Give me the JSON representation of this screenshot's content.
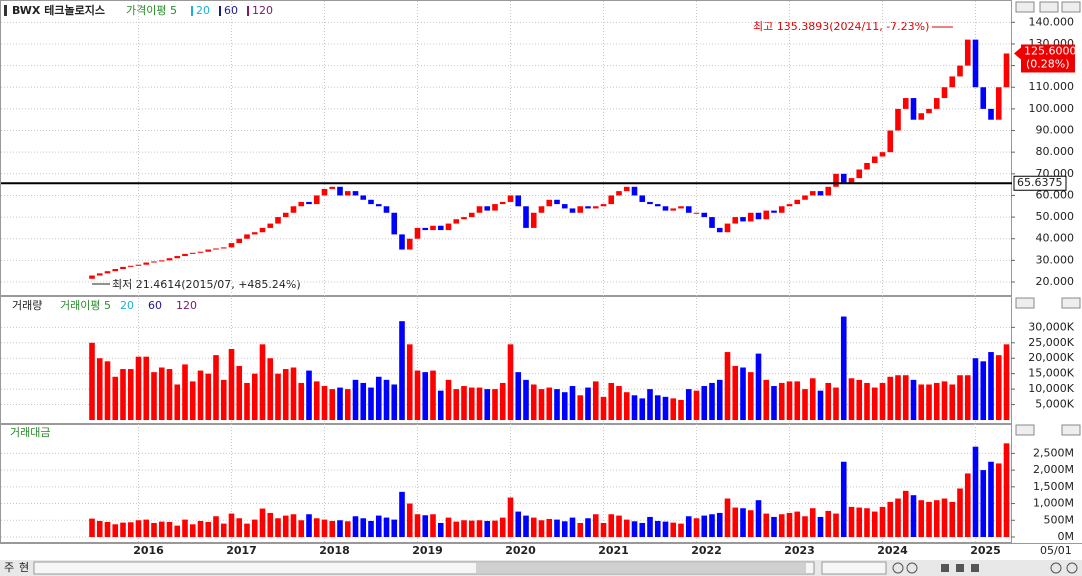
{
  "chart_data": {
    "type": "candlestick",
    "title": "BWX 테크놀로지스",
    "legend": {
      "ma_label": "가격이평 5",
      "items": [
        {
          "name": "20",
          "color": "#1ab0d8"
        },
        {
          "name": "60",
          "color": "#1a1a8c"
        },
        {
          "name": "120",
          "color": "#7a1a6a"
        }
      ]
    },
    "up_color": "#ff0000",
    "down_color": "#0000ff",
    "categories": [
      null,
      null,
      null,
      null,
      null,
      null,
      "2016",
      null,
      null,
      null,
      null,
      null,
      null,
      null,
      null,
      null,
      null,
      null,
      "2017",
      null,
      null,
      null,
      null,
      null,
      null,
      null,
      null,
      null,
      null,
      null,
      "2018",
      null,
      null,
      null,
      null,
      null,
      null,
      null,
      null,
      null,
      null,
      null,
      "2019",
      null,
      null,
      null,
      null,
      null,
      null,
      null,
      null,
      null,
      null,
      null,
      "2020",
      null,
      null,
      null,
      null,
      null,
      null,
      null,
      null,
      null,
      null,
      null,
      "2021",
      null,
      null,
      null,
      null,
      null,
      null,
      null,
      null,
      null,
      null,
      null,
      "2022",
      null,
      null,
      null,
      null,
      null,
      null,
      null,
      null,
      null,
      null,
      null,
      "2023",
      null,
      null,
      null,
      null,
      null,
      null,
      null,
      null,
      null,
      null,
      null,
      "2024",
      null,
      null,
      null,
      null,
      null,
      null,
      null,
      null,
      null,
      null,
      null,
      "2025",
      null,
      null,
      null,
      null
    ],
    "open": [
      21.5,
      23,
      24,
      25,
      26,
      27,
      27.5,
      28,
      29,
      29.5,
      30,
      31,
      32,
      33,
      33.5,
      34,
      35,
      35.5,
      36,
      38,
      40,
      42,
      43,
      45,
      47,
      50,
      52,
      55,
      57,
      56,
      60,
      63,
      64,
      60,
      62,
      60,
      58,
      56,
      55,
      52,
      42,
      35,
      40,
      45,
      44,
      46,
      44,
      47,
      49,
      50,
      52,
      55,
      53,
      56,
      57,
      60,
      55,
      45,
      52,
      55,
      58,
      56,
      54,
      52,
      55,
      54,
      55,
      56,
      60,
      62,
      64,
      60,
      57,
      56,
      55,
      53,
      54,
      55,
      52,
      52,
      50,
      45,
      43,
      47,
      50,
      48,
      52,
      49,
      53,
      52,
      55,
      56,
      58,
      60,
      62,
      60,
      64,
      70,
      66,
      68,
      72,
      75,
      78,
      80,
      90,
      100,
      105,
      95,
      98,
      100,
      105,
      110,
      115,
      120,
      132,
      110,
      100,
      95,
      110
    ],
    "close": [
      23,
      24,
      25,
      26,
      27,
      27.5,
      28,
      29,
      29.5,
      30,
      31,
      32,
      33,
      33.5,
      34,
      35,
      35.5,
      36,
      38,
      40,
      42,
      43,
      45,
      47,
      50,
      52,
      55,
      57,
      56,
      60,
      63,
      64,
      60,
      62,
      60,
      58,
      56,
      55,
      52,
      42,
      35,
      40,
      45,
      44,
      46,
      44,
      47,
      49,
      50,
      52,
      55,
      53,
      56,
      57,
      60,
      55,
      45,
      52,
      55,
      58,
      56,
      54,
      52,
      55,
      54,
      55,
      56,
      60,
      62,
      64,
      60,
      57,
      56,
      55,
      53,
      54,
      55,
      52,
      52,
      50,
      45,
      43,
      47,
      50,
      48,
      52,
      49,
      53,
      52,
      55,
      56,
      58,
      60,
      62,
      60,
      64,
      70,
      66,
      68,
      72,
      75,
      78,
      80,
      90,
      100,
      105,
      95,
      98,
      100,
      105,
      110,
      115,
      120,
      132,
      110,
      100,
      95,
      110,
      125.6
    ],
    "ylim": [
      14,
      148
    ],
    "yticks": [
      {
        "value": 20,
        "label": "20.000"
      },
      {
        "value": 30,
        "label": "30.000"
      },
      {
        "value": 40,
        "label": "40.000"
      },
      {
        "value": 50,
        "label": "50.000"
      },
      {
        "value": 60,
        "label": "60.000"
      },
      {
        "value": 70,
        "label": "70.000"
      },
      {
        "value": 80,
        "label": "80.000"
      },
      {
        "value": 90,
        "label": "90.000"
      },
      {
        "value": 100,
        "label": "100.000"
      },
      {
        "value": 110,
        "label": "110.000"
      },
      {
        "value": 120,
        "label": "120.000"
      },
      {
        "value": 130,
        "label": "130.000"
      },
      {
        "value": 140,
        "label": "140.000"
      }
    ],
    "grid": true,
    "max_annotation": "최고 135.3893(2024/11, -7.23%)",
    "min_annotation": "최저 21.4614(2015/07, +485.24%)",
    "hline": {
      "value": 65.6375,
      "label": "65.6375"
    },
    "last_price": {
      "value": 125.6,
      "label": "125.6000",
      "change": "(0.28%)"
    },
    "volume": {
      "title": "거래량",
      "ma_label": "거래이평 5",
      "legend": [
        "20",
        "60",
        "120"
      ],
      "values": [
        25000,
        20000,
        19000,
        14000,
        16500,
        16500,
        20500,
        20500,
        15500,
        17000,
        16500,
        11500,
        18000,
        12500,
        16000,
        15000,
        21000,
        13000,
        23000,
        17500,
        12000,
        15000,
        24500,
        20000,
        15000,
        16500,
        17000,
        12000,
        16000,
        12500,
        11000,
        10000,
        10500,
        10000,
        13000,
        12000,
        10500,
        14000,
        13000,
        11500,
        32000,
        24500,
        16000,
        15500,
        16000,
        9500,
        13000,
        10000,
        11000,
        10500,
        10500,
        10000,
        10000,
        12000,
        24500,
        15500,
        13000,
        11500,
        10000,
        10500,
        10000,
        9000,
        11000,
        8000,
        10500,
        12500,
        7500,
        12000,
        11000,
        9000,
        8000,
        7000,
        10000,
        8000,
        7500,
        7000,
        6500,
        10000,
        9500,
        11000,
        12000,
        13000,
        22000,
        17500,
        17000,
        15500,
        21500,
        13000,
        11000,
        12000,
        12500,
        12500,
        10000,
        13500,
        9500,
        12000,
        10500,
        33500,
        13500,
        13000,
        12000,
        10500,
        12000,
        14000,
        14500,
        14500,
        13000,
        11500,
        11500,
        12000,
        12500,
        11500,
        14500,
        14500,
        20000,
        19000,
        22000,
        21000,
        24500
      ],
      "ylim": [
        0,
        34000
      ],
      "yticks": [
        {
          "value": 5000,
          "label": "5,000K"
        },
        {
          "value": 10000,
          "label": "10,000K"
        },
        {
          "value": 15000,
          "label": "15,000K"
        },
        {
          "value": 20000,
          "label": "20,000K"
        },
        {
          "value": 25000,
          "label": "25,000K"
        },
        {
          "value": 30000,
          "label": "30,000K"
        }
      ]
    },
    "amount": {
      "title": "거래대금",
      "values": [
        550,
        480,
        450,
        380,
        430,
        440,
        500,
        520,
        420,
        460,
        450,
        340,
        520,
        380,
        480,
        450,
        620,
        400,
        700,
        560,
        400,
        520,
        850,
        720,
        560,
        640,
        680,
        500,
        680,
        560,
        520,
        480,
        500,
        470,
        620,
        560,
        480,
        640,
        580,
        520,
        1350,
        1000,
        680,
        650,
        680,
        420,
        580,
        460,
        500,
        490,
        500,
        480,
        490,
        580,
        1180,
        760,
        640,
        580,
        500,
        540,
        520,
        470,
        580,
        420,
        560,
        680,
        420,
        680,
        640,
        520,
        470,
        420,
        600,
        480,
        460,
        430,
        400,
        620,
        560,
        640,
        680,
        720,
        1150,
        880,
        860,
        800,
        1100,
        700,
        600,
        680,
        720,
        760,
        620,
        860,
        600,
        780,
        700,
        2250,
        900,
        880,
        860,
        760,
        900,
        1050,
        1150,
        1380,
        1250,
        1100,
        1050,
        1100,
        1150,
        1050,
        1450,
        1900,
        2700,
        2000,
        2250,
        2200,
        2800
      ],
      "ylim": [
        0,
        2900
      ],
      "yticks": [
        {
          "value": 0,
          "label": "0M"
        },
        {
          "value": 500,
          "label": "500M"
        },
        {
          "value": 1000,
          "label": "1,000M"
        },
        {
          "value": 1500,
          "label": "1,500M"
        },
        {
          "value": 2000,
          "label": "2,000M"
        },
        {
          "value": 2500,
          "label": "2,500M"
        }
      ]
    },
    "date_label": "05/01",
    "buttons": [
      "주",
      "현"
    ]
  }
}
